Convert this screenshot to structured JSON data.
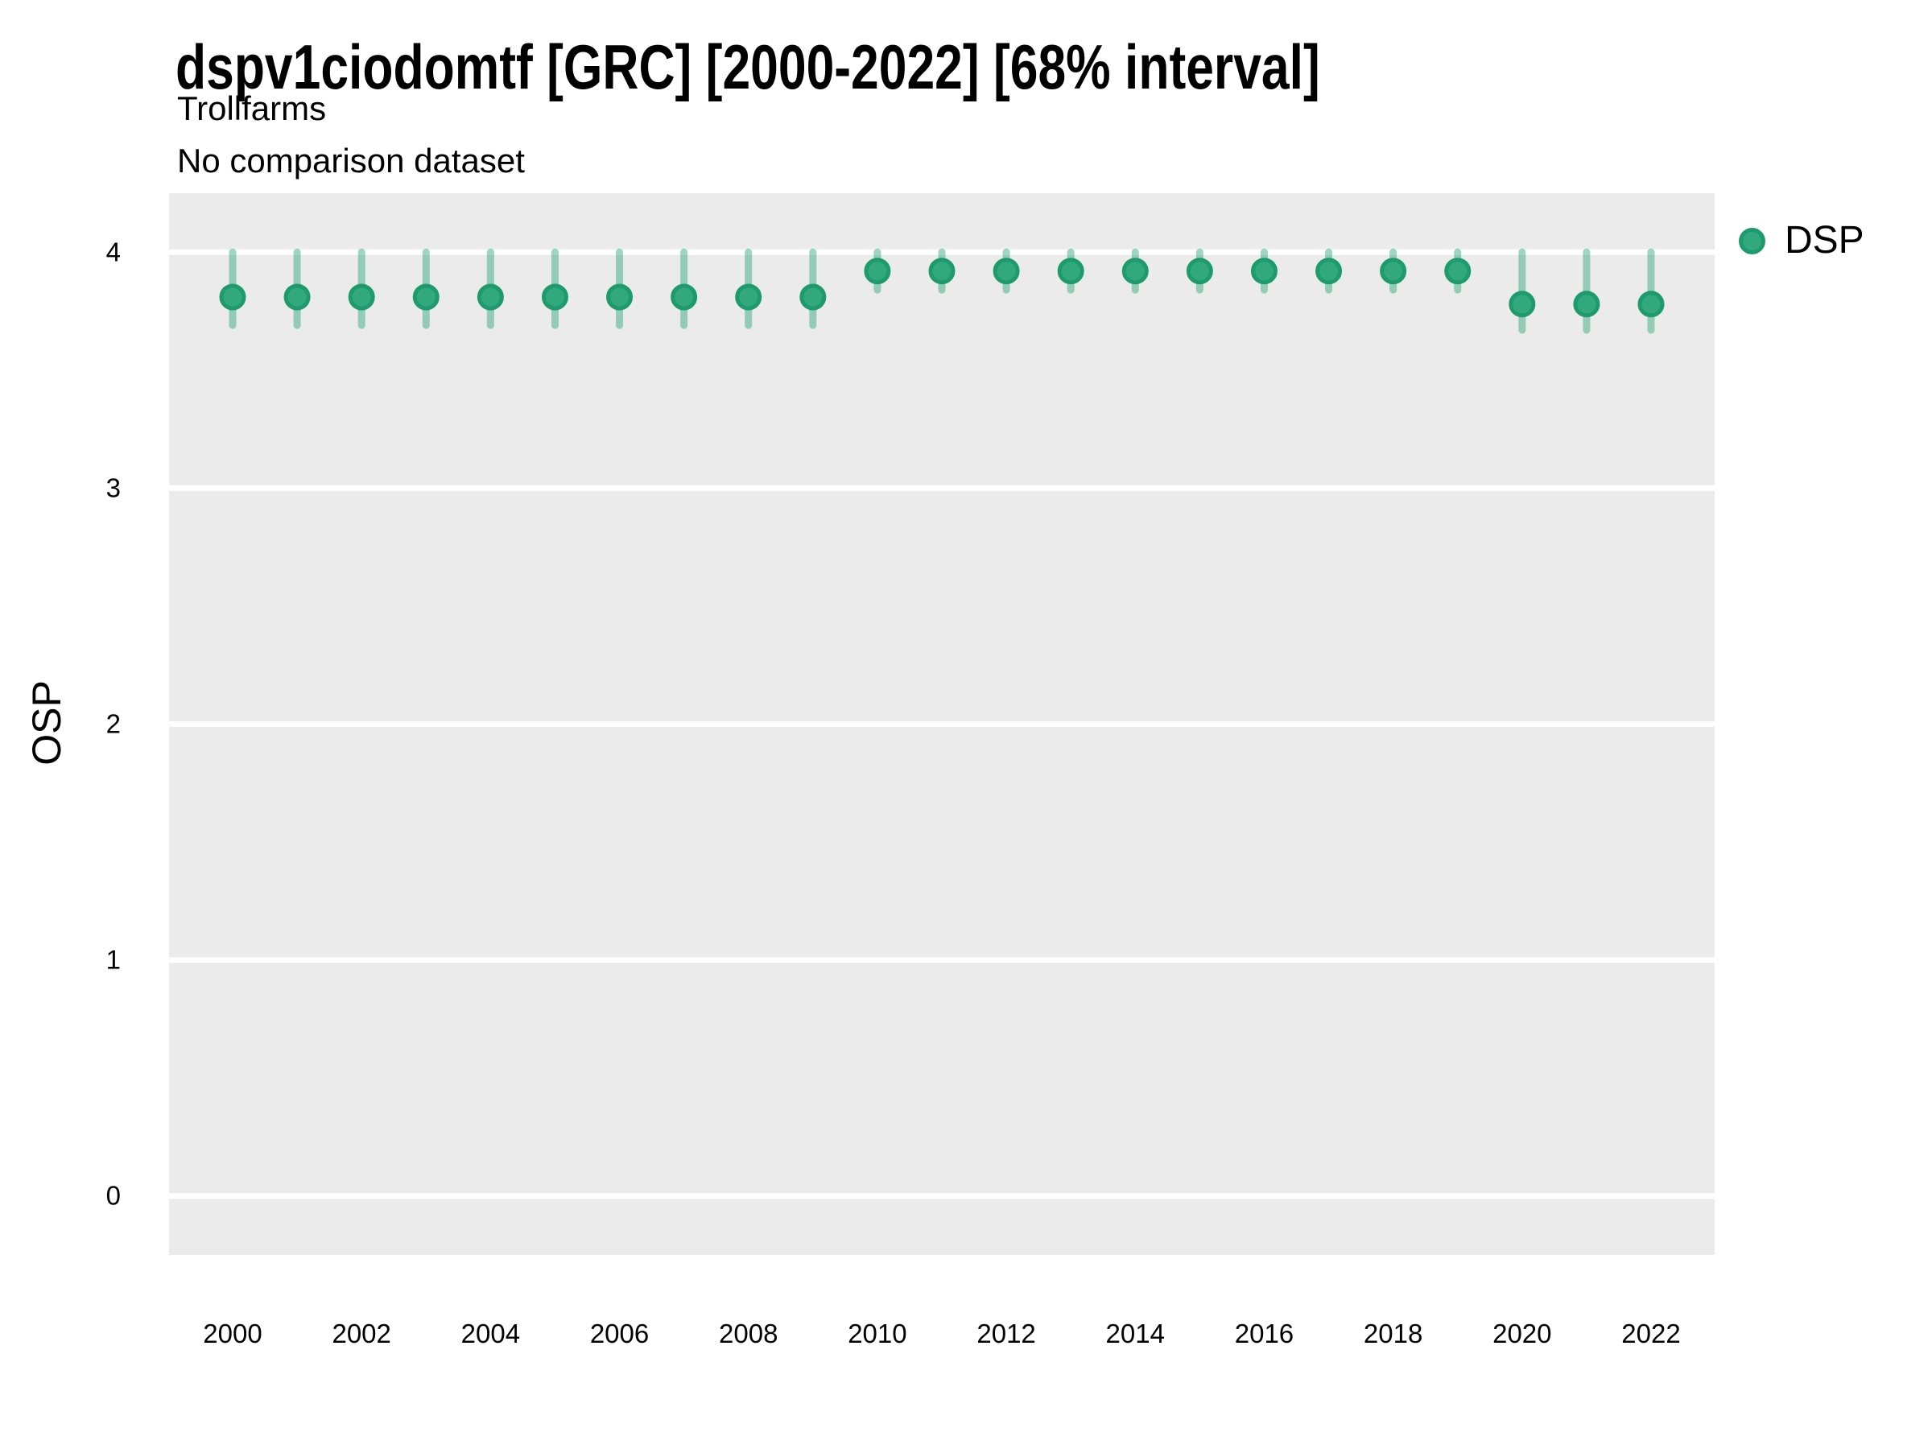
{
  "chart_data": {
    "type": "pointrange",
    "title": "dspv1ciodomtf [GRC] [2000-2022] [68% interval]",
    "subtitle": "Trollfarms",
    "comparison_note": "No comparison dataset",
    "ylabel": "OSP",
    "legend_label": "DSP",
    "legend_position": "right-top",
    "x": [
      2000,
      2001,
      2002,
      2003,
      2004,
      2005,
      2006,
      2007,
      2008,
      2009,
      2010,
      2011,
      2012,
      2013,
      2014,
      2015,
      2016,
      2017,
      2018,
      2019,
      2020,
      2021,
      2022
    ],
    "x_tick_labels": [
      "2000",
      "2002",
      "2004",
      "2006",
      "2008",
      "2010",
      "2012",
      "2014",
      "2016",
      "2018",
      "2020",
      "2022"
    ],
    "y_ticks": [
      0,
      1,
      2,
      3,
      4
    ],
    "ylim": [
      -0.25,
      4.25
    ],
    "grid": "major-horizontal-only",
    "series": [
      {
        "name": "DSP",
        "mid": [
          3.81,
          3.81,
          3.81,
          3.81,
          3.81,
          3.81,
          3.81,
          3.81,
          3.81,
          3.81,
          3.92,
          3.92,
          3.92,
          3.92,
          3.92,
          3.92,
          3.92,
          3.92,
          3.92,
          3.92,
          3.78,
          3.78,
          3.78
        ],
        "lo": [
          3.69,
          3.69,
          3.69,
          3.69,
          3.69,
          3.69,
          3.69,
          3.69,
          3.69,
          3.69,
          3.84,
          3.84,
          3.84,
          3.84,
          3.84,
          3.84,
          3.84,
          3.84,
          3.84,
          3.84,
          3.67,
          3.67,
          3.67
        ],
        "hi": [
          4.0,
          4.0,
          4.0,
          4.0,
          4.0,
          4.0,
          4.0,
          4.0,
          4.0,
          4.0,
          4.0,
          4.0,
          4.0,
          4.0,
          4.0,
          4.0,
          4.0,
          4.0,
          4.0,
          4.0,
          4.0,
          4.0,
          4.0
        ]
      }
    ],
    "colors": {
      "point_fill": "#31A87E",
      "point_stroke": "#1E9B6D",
      "interval": "#2FA77C",
      "interval_opacity": 0.47,
      "panel_bg": "#EBEBEB",
      "grid": "#FFFFFF",
      "text": "#000000"
    }
  }
}
